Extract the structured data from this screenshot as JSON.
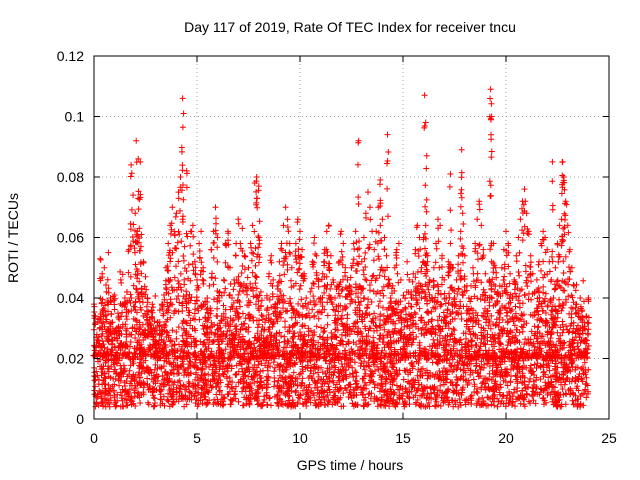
{
  "chart_data": {
    "type": "scatter",
    "title": "Day 117 of 2019, Rate Of TEC Index for receiver tncu",
    "xlabel": "GPS time / hours",
    "ylabel": "ROTI / TECUs",
    "xlim": [
      0,
      25
    ],
    "ylim": [
      0,
      0.12
    ],
    "xticks": [
      0,
      5,
      10,
      15,
      20,
      25
    ],
    "xtick_labels": [
      "0",
      "5",
      "10",
      "15",
      "20",
      "25"
    ],
    "yticks": [
      0,
      0.02,
      0.04,
      0.06,
      0.08,
      0.1,
      0.12
    ],
    "ytick_labels": [
      "0",
      "0.02",
      "0.04",
      "0.06",
      "0.08",
      "0.1",
      "0.12"
    ],
    "grid": true,
    "marker": "+",
    "color": "#ff0000",
    "series": [
      {
        "name": "ROTI",
        "x": [
          0.0,
          0.1,
          0.2,
          0.3,
          0.4,
          0.5,
          0.6,
          0.7,
          0.8,
          0.9,
          1.0,
          1.1,
          1.2,
          1.3,
          1.4,
          1.5,
          1.6,
          1.7,
          1.8,
          1.9,
          2.0,
          2.1,
          2.2,
          2.3,
          2.4,
          2.5,
          2.6,
          2.7,
          2.8,
          2.9,
          3.0,
          3.1,
          3.2,
          3.3,
          3.4,
          3.5,
          3.6,
          3.7,
          3.8,
          3.9,
          4.0,
          4.1,
          4.2,
          4.3,
          4.4,
          4.5,
          4.6,
          4.7,
          4.8,
          4.9,
          5.0,
          5.1,
          5.2,
          5.3,
          5.4,
          5.5,
          5.6,
          5.7,
          5.8,
          5.9,
          6.0,
          6.1,
          6.2,
          6.3,
          6.4,
          6.5,
          6.6,
          6.7,
          6.8,
          6.9,
          7.0,
          7.1,
          7.2,
          7.3,
          7.4,
          7.5,
          7.6,
          7.7,
          7.8,
          7.9,
          8.0,
          8.1,
          8.2,
          8.3,
          8.4,
          8.5,
          8.6,
          8.7,
          8.8,
          8.9,
          9.0,
          9.1,
          9.2,
          9.3,
          9.4,
          9.5,
          9.6,
          9.7,
          9.8,
          9.9,
          10.0,
          10.1,
          10.2,
          10.3,
          10.4,
          10.5,
          10.6,
          10.7,
          10.8,
          10.9,
          11.0,
          11.1,
          11.2,
          11.3,
          11.4,
          11.5,
          11.6,
          11.7,
          11.8,
          11.9,
          12.0,
          12.1,
          12.2,
          12.3,
          12.4,
          12.5,
          12.6,
          12.7,
          12.8,
          12.9,
          13.0,
          13.1,
          13.2,
          13.3,
          13.4,
          13.5,
          13.6,
          13.7,
          13.8,
          13.9,
          14.0,
          14.1,
          14.2,
          14.3,
          14.4,
          14.5,
          14.6,
          14.7,
          14.8,
          14.9,
          15.0,
          15.1,
          15.2,
          15.3,
          15.4,
          15.5,
          15.6,
          15.7,
          15.8,
          15.9,
          16.0,
          16.1,
          16.2,
          16.3,
          16.4,
          16.5,
          16.6,
          16.7,
          16.8,
          16.9,
          17.0,
          17.1,
          17.2,
          17.3,
          17.4,
          17.5,
          17.6,
          17.7,
          17.8,
          17.9,
          18.0,
          18.1,
          18.2,
          18.3,
          18.4,
          18.5,
          18.6,
          18.7,
          18.8,
          18.9,
          19.0,
          19.1,
          19.2,
          19.3,
          19.4,
          19.5,
          19.6,
          19.7,
          19.8,
          19.9,
          20.0,
          20.1,
          20.2,
          20.3,
          20.4,
          20.5,
          20.6,
          20.7,
          20.8,
          20.9,
          21.0,
          21.1,
          21.2,
          21.3,
          21.4,
          21.5,
          21.6,
          21.7,
          21.8,
          21.9,
          22.0,
          22.1,
          22.2,
          22.3,
          22.4,
          22.5,
          22.6,
          22.7,
          22.8,
          22.9,
          23.0,
          23.1,
          23.2,
          23.3,
          23.4,
          23.5,
          23.6,
          23.7,
          23.8,
          23.9,
          24.0,
          2.05,
          2.15,
          2.25,
          4.3,
          4.35,
          4.5,
          7.9,
          8.0,
          12.85,
          13.9,
          14.25,
          16.05,
          16.1,
          16.15,
          17.3,
          17.85,
          19.25,
          19.3,
          22.25,
          22.75,
          22.8
        ],
        "y": [
          0.038,
          0.027,
          0.033,
          0.053,
          0.048,
          0.05,
          0.042,
          0.055,
          0.04,
          0.032,
          0.041,
          0.03,
          0.034,
          0.046,
          0.038,
          0.04,
          0.042,
          0.056,
          0.084,
          0.074,
          0.068,
          0.062,
          0.063,
          0.061,
          0.052,
          0.047,
          0.04,
          0.033,
          0.036,
          0.03,
          0.028,
          0.032,
          0.036,
          0.038,
          0.041,
          0.05,
          0.058,
          0.064,
          0.07,
          0.062,
          0.068,
          0.075,
          0.08,
          0.066,
          0.057,
          0.041,
          0.051,
          0.062,
          0.064,
          0.052,
          0.046,
          0.058,
          0.062,
          0.05,
          0.038,
          0.04,
          0.044,
          0.056,
          0.062,
          0.07,
          0.06,
          0.042,
          0.034,
          0.046,
          0.058,
          0.062,
          0.05,
          0.04,
          0.046,
          0.058,
          0.066,
          0.058,
          0.063,
          0.054,
          0.044,
          0.05,
          0.058,
          0.064,
          0.078,
          0.073,
          0.06,
          0.042,
          0.034,
          0.032,
          0.04,
          0.048,
          0.054,
          0.046,
          0.038,
          0.044,
          0.052,
          0.058,
          0.064,
          0.07,
          0.066,
          0.058,
          0.05,
          0.044,
          0.058,
          0.066,
          0.062,
          0.056,
          0.048,
          0.04,
          0.038,
          0.042,
          0.052,
          0.06,
          0.054,
          0.046,
          0.04,
          0.048,
          0.056,
          0.062,
          0.064,
          0.054,
          0.046,
          0.04,
          0.044,
          0.052,
          0.062,
          0.058,
          0.05,
          0.046,
          0.044,
          0.05,
          0.058,
          0.062,
          0.056,
          0.044,
          0.052,
          0.06,
          0.068,
          0.075,
          0.07,
          0.062,
          0.056,
          0.062,
          0.07,
          0.064,
          0.066,
          0.06,
          0.054,
          0.046,
          0.04,
          0.044,
          0.05,
          0.056,
          0.058,
          0.046,
          0.036,
          0.04,
          0.052,
          0.046,
          0.042,
          0.048,
          0.056,
          0.064,
          0.06,
          0.05,
          0.06,
          0.064,
          0.054,
          0.046,
          0.04,
          0.05,
          0.058,
          0.066,
          0.064,
          0.054,
          0.046,
          0.04,
          0.052,
          0.058,
          0.05,
          0.04,
          0.046,
          0.054,
          0.062,
          0.068,
          0.054,
          0.044,
          0.04,
          0.044,
          0.05,
          0.058,
          0.066,
          0.072,
          0.064,
          0.056,
          0.048,
          0.04,
          0.046,
          0.052,
          0.058,
          0.05,
          0.042,
          0.044,
          0.05,
          0.056,
          0.062,
          0.058,
          0.048,
          0.04,
          0.046,
          0.054,
          0.06,
          0.066,
          0.072,
          0.076,
          0.068,
          0.062,
          0.054,
          0.048,
          0.042,
          0.046,
          0.052,
          0.058,
          0.062,
          0.06,
          0.056,
          0.052,
          0.046,
          0.04,
          0.05,
          0.058,
          0.064,
          0.066,
          0.08,
          0.072,
          0.064,
          0.056,
          0.05,
          0.044,
          0.038,
          0.036,
          0.04,
          0.036,
          0.032,
          0.034,
          0.04,
          0.092,
          0.086,
          0.085,
          0.106,
          0.101,
          0.082,
          0.08,
          0.077,
          0.092,
          0.079,
          0.094,
          0.107,
          0.098,
          0.087,
          0.081,
          0.089,
          0.109,
          0.1,
          0.085,
          0.085,
          0.08
        ]
      }
    ],
    "background": {
      "description_note": "dense band of markers",
      "x_range": [
        0,
        24
      ],
      "y_base_range": [
        0.004,
        0.022
      ],
      "y_typical_max": 0.04
    }
  }
}
